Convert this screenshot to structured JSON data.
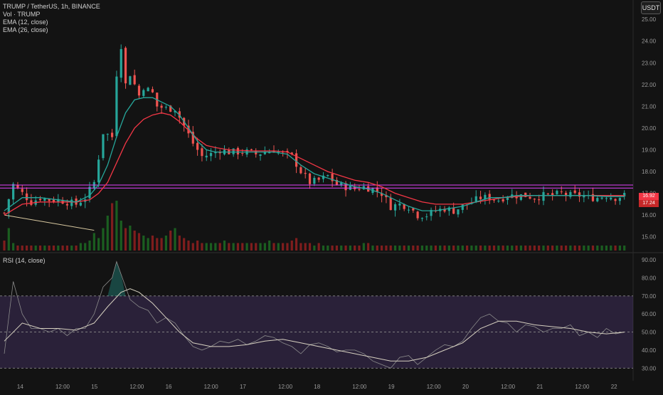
{
  "legend": {
    "symbol": "TRUMP / TetherUS, 1h, BINANCE",
    "volume": "Vol · TRUMP",
    "ema12": "EMA (12, close)",
    "ema26": "EMA (26, close)",
    "rsi": "RSI (14, close)"
  },
  "currency_button": "USDT",
  "last_price_tags": [
    "16.92",
    "17.24"
  ],
  "colors": {
    "background": "#131313",
    "up": "#26a69a",
    "down": "#ef5350",
    "ema12": "#26a69a",
    "ema26": "#f23645",
    "hline": "#e040fb",
    "rsi": "#a8a8a8",
    "rsi_band": "#7e57c2",
    "volume_up": "#1b5e20",
    "volume_down": "#7f1d1d"
  },
  "chart_data": [
    {
      "type": "candlestick",
      "name": "price",
      "ylim": [
        14.5,
        25.3
      ],
      "y_ticks": [
        "25.00",
        "24.00",
        "23.00",
        "22.00",
        "21.00",
        "20.00",
        "19.00",
        "18.00",
        "17.00",
        "16.00",
        "15.00"
      ],
      "x_ticks": [
        "14",
        "12:00",
        "15",
        "12:00",
        "16",
        "12:00",
        "17",
        "12:00",
        "18",
        "12:00",
        "19",
        "12:00",
        "20",
        "12:00",
        "21",
        "12:00",
        "22"
      ],
      "close_path": [
        [
          0,
          16.1
        ],
        [
          2,
          17.4
        ],
        [
          4,
          17.0
        ],
        [
          6,
          16.6
        ],
        [
          8,
          16.8
        ],
        [
          10,
          16.7
        ],
        [
          12,
          16.7
        ],
        [
          14,
          16.6
        ],
        [
          16,
          16.5
        ],
        [
          18,
          16.8
        ],
        [
          20,
          17.5
        ],
        [
          22,
          19.8
        ],
        [
          24,
          19.6
        ],
        [
          25,
          22.5
        ],
        [
          26,
          23.8
        ],
        [
          27,
          22.0
        ],
        [
          28,
          22.5
        ],
        [
          30,
          21.5
        ],
        [
          31,
          21.9
        ],
        [
          33,
          21.6
        ],
        [
          34,
          21.0
        ],
        [
          36,
          20.9
        ],
        [
          38,
          20.9
        ],
        [
          40,
          20.1
        ],
        [
          42,
          19.3
        ],
        [
          44,
          18.7
        ],
        [
          46,
          18.8
        ],
        [
          48,
          19.0
        ],
        [
          50,
          18.9
        ],
        [
          52,
          18.9
        ],
        [
          54,
          18.9
        ],
        [
          56,
          18.8
        ],
        [
          58,
          18.9
        ],
        [
          60,
          19.0
        ],
        [
          62,
          18.8
        ],
        [
          64,
          18.7
        ],
        [
          66,
          18.0
        ],
        [
          68,
          17.5
        ],
        [
          70,
          17.6
        ],
        [
          72,
          17.8
        ],
        [
          74,
          17.4
        ],
        [
          76,
          17.3
        ],
        [
          78,
          17.2
        ],
        [
          80,
          17.3
        ],
        [
          82,
          17.2
        ],
        [
          84,
          17.0
        ],
        [
          86,
          16.4
        ],
        [
          88,
          16.5
        ],
        [
          90,
          16.4
        ],
        [
          92,
          16.0
        ],
        [
          94,
          16.0
        ],
        [
          96,
          16.2
        ],
        [
          98,
          16.3
        ],
        [
          100,
          16.2
        ],
        [
          102,
          16.4
        ],
        [
          104,
          16.6
        ],
        [
          106,
          16.8
        ],
        [
          108,
          16.8
        ],
        [
          110,
          16.7
        ],
        [
          112,
          16.9
        ],
        [
          114,
          16.9
        ],
        [
          116,
          16.9
        ],
        [
          118,
          16.8
        ],
        [
          120,
          16.9
        ],
        [
          122,
          16.9
        ],
        [
          124,
          17.0
        ],
        [
          126,
          16.9
        ],
        [
          128,
          16.9
        ],
        [
          130,
          16.8
        ],
        [
          132,
          16.8
        ],
        [
          134,
          16.9
        ],
        [
          136,
          16.8
        ],
        [
          138,
          16.9
        ]
      ],
      "ema12": [
        [
          0,
          16.2
        ],
        [
          4,
          16.8
        ],
        [
          8,
          16.8
        ],
        [
          12,
          16.7
        ],
        [
          16,
          16.6
        ],
        [
          19,
          16.9
        ],
        [
          21,
          17.4
        ],
        [
          23,
          18.3
        ],
        [
          25,
          19.6
        ],
        [
          27,
          20.7
        ],
        [
          29,
          21.3
        ],
        [
          31,
          21.4
        ],
        [
          33,
          21.4
        ],
        [
          35,
          21.2
        ],
        [
          37,
          21.0
        ],
        [
          39,
          20.6
        ],
        [
          41,
          20.0
        ],
        [
          43,
          19.4
        ],
        [
          45,
          19.0
        ],
        [
          47,
          18.9
        ],
        [
          50,
          18.9
        ],
        [
          55,
          18.9
        ],
        [
          60,
          18.9
        ],
        [
          63,
          18.8
        ],
        [
          66,
          18.3
        ],
        [
          69,
          17.9
        ],
        [
          72,
          17.7
        ],
        [
          75,
          17.5
        ],
        [
          78,
          17.3
        ],
        [
          81,
          17.2
        ],
        [
          84,
          17.0
        ],
        [
          87,
          16.7
        ],
        [
          90,
          16.4
        ],
        [
          93,
          16.2
        ],
        [
          96,
          16.2
        ],
        [
          99,
          16.3
        ],
        [
          102,
          16.4
        ],
        [
          105,
          16.6
        ],
        [
          108,
          16.8
        ],
        [
          111,
          16.8
        ],
        [
          114,
          16.9
        ],
        [
          118,
          16.9
        ],
        [
          122,
          16.9
        ],
        [
          126,
          16.9
        ],
        [
          130,
          16.9
        ],
        [
          134,
          16.85
        ],
        [
          138,
          16.85
        ]
      ],
      "ema26": [
        [
          0,
          16.0
        ],
        [
          4,
          16.5
        ],
        [
          8,
          16.6
        ],
        [
          12,
          16.6
        ],
        [
          16,
          16.6
        ],
        [
          19,
          16.7
        ],
        [
          21,
          17.0
        ],
        [
          23,
          17.5
        ],
        [
          25,
          18.4
        ],
        [
          27,
          19.3
        ],
        [
          29,
          20.0
        ],
        [
          31,
          20.4
        ],
        [
          33,
          20.6
        ],
        [
          35,
          20.7
        ],
        [
          37,
          20.6
        ],
        [
          39,
          20.3
        ],
        [
          41,
          19.9
        ],
        [
          43,
          19.5
        ],
        [
          45,
          19.2
        ],
        [
          47,
          19.1
        ],
        [
          50,
          19.0
        ],
        [
          55,
          18.95
        ],
        [
          60,
          18.95
        ],
        [
          63,
          18.9
        ],
        [
          66,
          18.6
        ],
        [
          69,
          18.3
        ],
        [
          72,
          18.0
        ],
        [
          75,
          17.8
        ],
        [
          78,
          17.6
        ],
        [
          81,
          17.5
        ],
        [
          84,
          17.3
        ],
        [
          87,
          17.0
        ],
        [
          90,
          16.8
        ],
        [
          93,
          16.6
        ],
        [
          96,
          16.5
        ],
        [
          99,
          16.5
        ],
        [
          102,
          16.5
        ],
        [
          105,
          16.6
        ],
        [
          108,
          16.7
        ],
        [
          111,
          16.8
        ],
        [
          114,
          16.85
        ],
        [
          118,
          16.9
        ],
        [
          122,
          16.9
        ],
        [
          126,
          16.9
        ],
        [
          130,
          16.9
        ],
        [
          134,
          16.9
        ],
        [
          138,
          16.9
        ]
      ],
      "horizontal_lines": [
        17.24,
        17.38
      ],
      "trend_line": [
        [
          0,
          16.0
        ],
        [
          20,
          15.3
        ]
      ]
    },
    {
      "type": "bar",
      "name": "volume",
      "values": [
        4,
        9,
        3,
        2,
        2,
        2,
        2,
        2,
        2,
        2,
        2,
        2,
        2,
        2,
        2,
        2,
        2,
        3,
        3,
        4,
        7,
        5,
        9,
        14,
        19,
        20,
        12,
        9,
        10,
        8,
        7,
        6,
        5,
        6,
        5,
        5,
        6,
        8,
        9,
        6,
        5,
        4,
        3,
        4,
        3,
        3,
        3,
        3,
        3,
        4,
        3,
        3,
        3,
        3,
        3,
        3,
        3,
        3,
        3,
        4,
        3,
        3,
        3,
        3,
        4,
        5,
        3,
        3,
        3,
        2,
        3,
        2,
        2,
        2,
        2,
        2,
        2,
        2,
        2,
        2,
        3,
        3,
        2,
        2,
        2,
        2,
        2,
        2,
        2,
        2,
        2,
        2,
        2,
        2,
        2,
        2,
        2,
        2,
        2,
        2,
        2,
        2,
        2,
        2,
        2,
        2,
        2,
        2,
        2,
        2,
        2,
        2,
        2,
        2,
        2,
        2,
        2,
        2,
        2,
        2,
        2,
        2,
        2,
        2,
        2,
        2,
        2,
        2,
        2,
        2,
        2,
        2,
        2,
        2,
        2,
        2,
        2,
        2,
        2
      ]
    },
    {
      "type": "line",
      "name": "RSI (14, close)",
      "ylim": [
        25,
        92
      ],
      "y_ticks": [
        "90.00",
        "80.00",
        "70.00",
        "60.00",
        "50.00",
        "40.00",
        "30.00"
      ],
      "bands": [
        30,
        50,
        70
      ],
      "values": [
        [
          0,
          38
        ],
        [
          2,
          78
        ],
        [
          4,
          60
        ],
        [
          6,
          52
        ],
        [
          8,
          52
        ],
        [
          10,
          50
        ],
        [
          12,
          52
        ],
        [
          14,
          48
        ],
        [
          16,
          52
        ],
        [
          18,
          52
        ],
        [
          20,
          60
        ],
        [
          22,
          75
        ],
        [
          24,
          80
        ],
        [
          25,
          89
        ],
        [
          26,
          82
        ],
        [
          28,
          68
        ],
        [
          30,
          64
        ],
        [
          32,
          62
        ],
        [
          34,
          55
        ],
        [
          36,
          58
        ],
        [
          38,
          55
        ],
        [
          40,
          48
        ],
        [
          42,
          42
        ],
        [
          44,
          40
        ],
        [
          46,
          42
        ],
        [
          48,
          45
        ],
        [
          50,
          44
        ],
        [
          52,
          46
        ],
        [
          54,
          43
        ],
        [
          56,
          45
        ],
        [
          58,
          48
        ],
        [
          60,
          47
        ],
        [
          62,
          44
        ],
        [
          64,
          42
        ],
        [
          66,
          38
        ],
        [
          68,
          43
        ],
        [
          70,
          44
        ],
        [
          72,
          42
        ],
        [
          74,
          39
        ],
        [
          76,
          40
        ],
        [
          78,
          40
        ],
        [
          80,
          38
        ],
        [
          82,
          34
        ],
        [
          84,
          32
        ],
        [
          86,
          30
        ],
        [
          88,
          36
        ],
        [
          90,
          37
        ],
        [
          92,
          32
        ],
        [
          94,
          36
        ],
        [
          96,
          40
        ],
        [
          98,
          43
        ],
        [
          100,
          42
        ],
        [
          102,
          45
        ],
        [
          104,
          52
        ],
        [
          106,
          58
        ],
        [
          108,
          60
        ],
        [
          110,
          56
        ],
        [
          112,
          55
        ],
        [
          114,
          50
        ],
        [
          116,
          54
        ],
        [
          118,
          53
        ],
        [
          120,
          50
        ],
        [
          122,
          52
        ],
        [
          124,
          52
        ],
        [
          126,
          54
        ],
        [
          128,
          48
        ],
        [
          130,
          50
        ],
        [
          132,
          47
        ],
        [
          134,
          52
        ],
        [
          136,
          49
        ],
        [
          138,
          50
        ]
      ],
      "ma": [
        [
          0,
          45
        ],
        [
          4,
          55
        ],
        [
          8,
          52
        ],
        [
          12,
          52
        ],
        [
          16,
          51
        ],
        [
          20,
          55
        ],
        [
          23,
          64
        ],
        [
          26,
          72
        ],
        [
          28,
          74
        ],
        [
          30,
          72
        ],
        [
          33,
          66
        ],
        [
          36,
          58
        ],
        [
          39,
          50
        ],
        [
          42,
          44
        ],
        [
          46,
          42
        ],
        [
          50,
          42
        ],
        [
          54,
          43
        ],
        [
          58,
          45
        ],
        [
          62,
          46
        ],
        [
          66,
          44
        ],
        [
          70,
          42
        ],
        [
          74,
          40
        ],
        [
          78,
          38
        ],
        [
          82,
          36
        ],
        [
          86,
          34
        ],
        [
          90,
          34
        ],
        [
          94,
          36
        ],
        [
          98,
          40
        ],
        [
          102,
          44
        ],
        [
          106,
          52
        ],
        [
          110,
          56
        ],
        [
          114,
          56
        ],
        [
          118,
          54
        ],
        [
          122,
          53
        ],
        [
          126,
          52
        ],
        [
          130,
          50
        ],
        [
          134,
          49
        ],
        [
          138,
          50
        ]
      ]
    }
  ]
}
